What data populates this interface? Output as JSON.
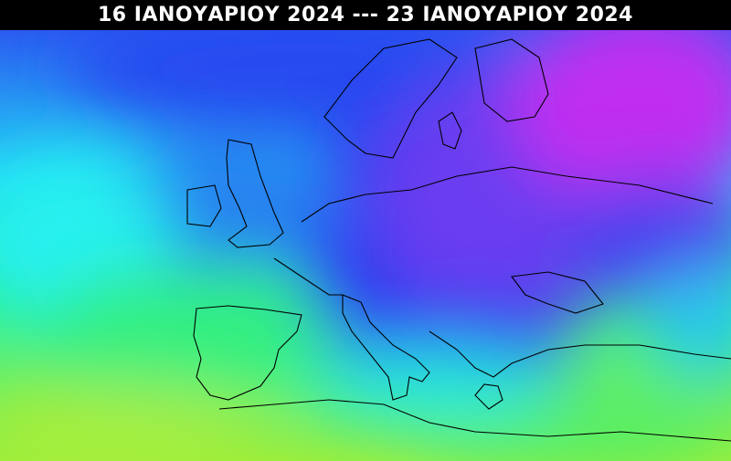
{
  "header": {
    "title": "16 ΙΑΝΟΥΑΡΙΟΥ 2024 --- 23 ΙΑΝΟΥΑΡΙΟΥ 2024"
  }
}
